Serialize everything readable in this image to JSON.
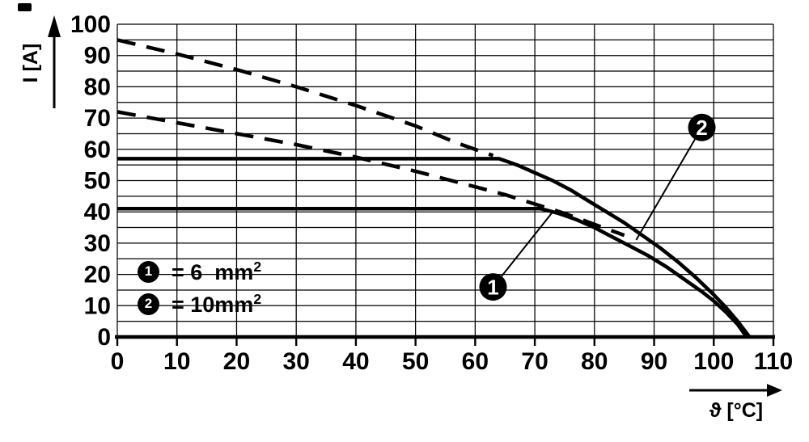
{
  "chart_data": {
    "type": "line",
    "title": "",
    "xlabel": "ϑ [°C]",
    "ylabel": "I [A]",
    "xlim": [
      0,
      110
    ],
    "ylim": [
      0,
      100
    ],
    "x_ticks": [
      0,
      10,
      20,
      30,
      40,
      50,
      60,
      70,
      80,
      90,
      100,
      110
    ],
    "y_ticks": [
      0,
      10,
      20,
      30,
      40,
      50,
      60,
      70,
      80,
      90,
      100
    ],
    "y_minor_step": 5,
    "grid": "on",
    "legend_position": "inside-lower-left",
    "colors": {
      "line": "#000000",
      "background": "#ffffff",
      "bubble_fill": "#000000",
      "bubble_text": "#ffffff"
    },
    "series": [
      {
        "name": "capacity-10mm2-dashed",
        "style": "dashed",
        "points": [
          [
            0,
            95
          ],
          [
            10,
            90.5
          ],
          [
            20,
            85.5
          ],
          [
            30,
            80
          ],
          [
            40,
            74
          ],
          [
            50,
            67.5
          ],
          [
            57,
            62
          ],
          [
            63,
            58
          ]
        ]
      },
      {
        "name": "capacity-6mm2-dashed",
        "style": "dashed",
        "points": [
          [
            0,
            72
          ],
          [
            10,
            68.5
          ],
          [
            20,
            65
          ],
          [
            30,
            61.5
          ],
          [
            40,
            57.5
          ],
          [
            50,
            53
          ],
          [
            60,
            48
          ],
          [
            65,
            45.5
          ],
          [
            70,
            42.5
          ],
          [
            75,
            39.5
          ],
          [
            80,
            36
          ],
          [
            85,
            32.5
          ]
        ]
      },
      {
        "name": "derated-10mm2-solid-curve-2",
        "style": "solid",
        "points": [
          [
            0,
            57
          ],
          [
            64,
            57
          ],
          [
            67,
            55
          ],
          [
            70,
            52.5
          ],
          [
            73,
            50
          ],
          [
            76,
            47
          ],
          [
            79,
            43.5
          ],
          [
            82,
            40
          ],
          [
            85,
            36.5
          ],
          [
            88,
            32.5
          ],
          [
            91,
            28.5
          ],
          [
            94,
            24
          ],
          [
            97,
            19
          ],
          [
            100,
            13.5
          ],
          [
            102,
            9.5
          ],
          [
            104,
            5
          ],
          [
            106,
            0
          ]
        ]
      },
      {
        "name": "derated-6mm2-solid-curve-1",
        "style": "solid",
        "points": [
          [
            0,
            41
          ],
          [
            71,
            41
          ],
          [
            74,
            39.5
          ],
          [
            77,
            37.5
          ],
          [
            80,
            35
          ],
          [
            83,
            32
          ],
          [
            86,
            29
          ],
          [
            89,
            26
          ],
          [
            92,
            22.5
          ],
          [
            95,
            18.5
          ],
          [
            98,
            14.5
          ],
          [
            100,
            11.5
          ],
          [
            102,
            8
          ],
          [
            104,
            4
          ],
          [
            105.5,
            0
          ]
        ]
      }
    ],
    "legend": [
      {
        "marker": "1",
        "text": "= 6  mm",
        "sup": "2"
      },
      {
        "marker": "2",
        "text": "= 10mm",
        "sup": "2"
      }
    ],
    "callouts": [
      {
        "label": "1",
        "circle_at": [
          63,
          16
        ],
        "points_to": [
          73,
          40
        ]
      },
      {
        "label": "2",
        "circle_at": [
          98,
          67
        ],
        "points_to": [
          87,
          31
        ]
      }
    ]
  }
}
